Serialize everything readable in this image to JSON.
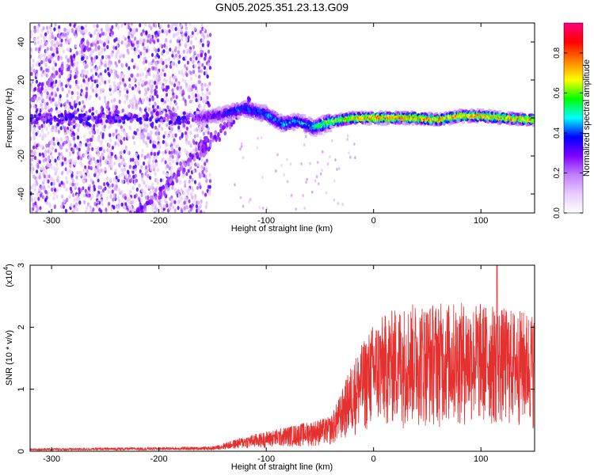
{
  "figure": {
    "title": "GN05.2025.351.23.13.G09"
  },
  "chart_data": [
    {
      "type": "heatmap",
      "name": "spectrogram",
      "xlabel": "Height of straight line (km)",
      "ylabel": "Frequency (Hz)",
      "xlim": [
        -320,
        150
      ],
      "ylim": [
        -50,
        50
      ],
      "xticks": [
        -300,
        -200,
        -100,
        0,
        100
      ],
      "yticks": [
        -40,
        -20,
        0,
        20,
        40
      ],
      "colorbar": {
        "label": "Normalized spectral amplitude",
        "range": [
          0,
          0.95
        ],
        "ticks": [
          0,
          0.2,
          0.4,
          0.6,
          0.8
        ],
        "colormap": [
          "#ffffff",
          "#e8ccff",
          "#c080ff",
          "#7f00ff",
          "#0000ff",
          "#00ffff",
          "#00ff00",
          "#ffff00",
          "#ff8000",
          "#ff0000",
          "#ff0080"
        ]
      },
      "ridge": {
        "description_values_km_hz": [
          [
            -160,
            0
          ],
          [
            -140,
            2
          ],
          [
            -120,
            5
          ],
          [
            -100,
            2
          ],
          [
            -85,
            -3
          ],
          [
            -70,
            -2
          ],
          [
            -55,
            -5
          ],
          [
            -40,
            -2
          ],
          [
            -20,
            0
          ],
          [
            0,
            0
          ],
          [
            20,
            0
          ],
          [
            40,
            0
          ],
          [
            60,
            -1
          ],
          [
            80,
            1
          ],
          [
            100,
            1
          ],
          [
            120,
            0
          ],
          [
            150,
            -1
          ]
        ],
        "amplitude_by_height": [
          [
            -160,
            0.3
          ],
          [
            -120,
            0.45
          ],
          [
            -60,
            0.5
          ],
          [
            -30,
            0.75
          ],
          [
            0,
            0.85
          ],
          [
            150,
            0.8
          ]
        ]
      },
      "noise_region_km": [
        -320,
        -160
      ],
      "diagonal_tracks_hz": [
        [
          -300,
          20
        ],
        [
          -150,
          -10
        ],
        [
          -210,
          -45
        ],
        [
          -165,
          -20
        ]
      ]
    },
    {
      "type": "line",
      "name": "snr",
      "color": "#e53030",
      "xlabel": "Height of straight line (km)",
      "ylabel": "SNR (10 * v/v)",
      "multiplier_label": "(x10",
      "multiplier_exp": "4",
      "multiplier_close": ")",
      "xlim": [
        -320,
        150
      ],
      "ylim": [
        0,
        3
      ],
      "xticks": [
        -300,
        -200,
        -100,
        0,
        100
      ],
      "yticks": [
        0,
        1,
        2,
        3
      ],
      "envelope": [
        [
          -320,
          0.03
        ],
        [
          -150,
          0.05
        ],
        [
          -120,
          0.15
        ],
        [
          -80,
          0.25
        ],
        [
          -60,
          0.3
        ],
        [
          -40,
          0.35
        ],
        [
          -30,
          0.6
        ],
        [
          -20,
          0.9
        ],
        [
          -10,
          1.1
        ],
        [
          0,
          1.3
        ],
        [
          20,
          1.45
        ],
        [
          40,
          1.5
        ],
        [
          60,
          1.5
        ],
        [
          80,
          1.5
        ],
        [
          100,
          1.5
        ],
        [
          120,
          1.45
        ],
        [
          150,
          1.4
        ]
      ],
      "peak": [
        115,
        3.05
      ]
    }
  ]
}
